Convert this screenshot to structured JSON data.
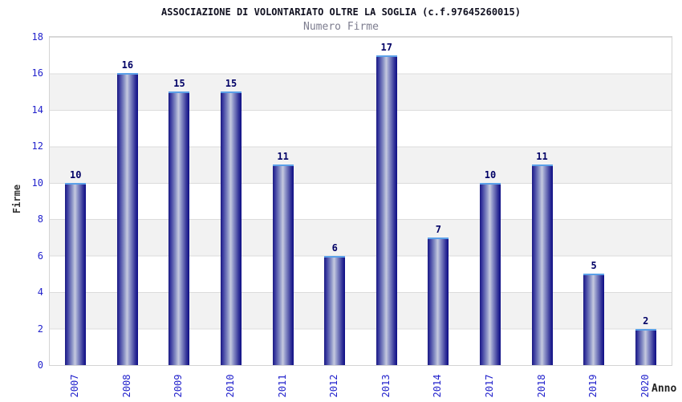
{
  "header": {
    "title": "ASSOCIAZIONE DI VOLONTARIATO OLTRE LA SOGLIA (c.f.97645260015)",
    "subtitle": "Numero Firme"
  },
  "chart_data": {
    "type": "bar",
    "title": "ASSOCIAZIONE DI VOLONTARIATO OLTRE LA SOGLIA (c.f.97645260015)",
    "subtitle": "Numero Firme",
    "categories": [
      "2007",
      "2008",
      "2009",
      "2010",
      "2011",
      "2012",
      "2013",
      "2014",
      "2017",
      "2018",
      "2019",
      "2020"
    ],
    "values": [
      10,
      16,
      15,
      15,
      11,
      6,
      17,
      7,
      10,
      11,
      5,
      2
    ],
    "xlabel": "Anno",
    "ylabel": "Firme",
    "ylim": [
      0,
      18
    ],
    "yticks": [
      0,
      2,
      4,
      6,
      8,
      10,
      12,
      14,
      16,
      18
    ],
    "grid": "horizontal alternating bands with light gridlines",
    "legend_position": "none",
    "bar_value_labels": true,
    "x_tick_rotation_degrees": -90,
    "colors": {
      "bar_edge_dark": "#12127c",
      "bar_center_light": "#c6cadf",
      "bar_top_cap": "#5ba0e8",
      "tick_label": "#2222cc",
      "value_label": "#000066",
      "band_gray": "#f2f2f2",
      "grid_line": "#dcdcdc",
      "title_text": "#101020",
      "subtitle_text": "#7d7d8f",
      "axis_name_text": "#333333"
    }
  }
}
